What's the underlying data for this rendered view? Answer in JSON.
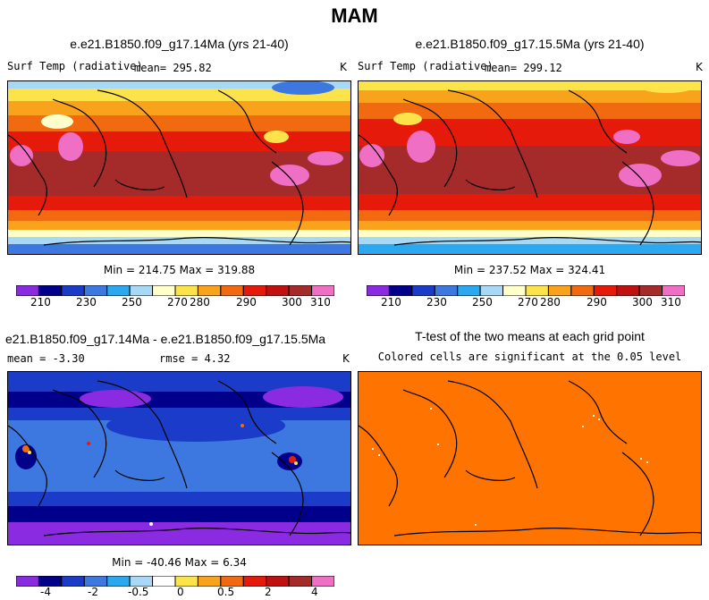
{
  "figure_title": "MAM",
  "panels": [
    {
      "title": "e.e21.B1850.f09_g17.14Ma (yrs 21-40)",
      "left_label": "Surf Temp (radiative)",
      "mean_text": "mean= 295.82",
      "units": "K",
      "minmax": "Min = 214.75 Max = 319.88",
      "colorbar_labels": [
        "210",
        "230",
        "250",
        "270",
        "280",
        "290",
        "300",
        "310"
      ]
    },
    {
      "title": "e.e21.B1850.f09_g17.15.5Ma (yrs 21-40)",
      "left_label": "Surf Temp (radiative)",
      "mean_text": "mean= 299.12",
      "units": "K",
      "minmax": "Min = 237.52 Max = 324.41",
      "colorbar_labels": [
        "210",
        "230",
        "250",
        "270",
        "280",
        "290",
        "300",
        "310"
      ]
    },
    {
      "title": "e21.B1850.f09_g17.14Ma - e.e21.B1850.f09_g17.15.5Ma",
      "mean_text": "mean =  -3.30",
      "rmse_text": "rmse =   4.32",
      "units": "K",
      "minmax": "Min = -40.46 Max =   6.34",
      "colorbar_labels": [
        "-4",
        "-2",
        "-0.5",
        "0",
        "0.5",
        "2",
        "4"
      ]
    },
    {
      "title": "T-test of the two means at each grid point",
      "subtitle": "Colored cells are significant at the 0.05 level"
    }
  ],
  "colors": {
    "temp_scale": [
      "#8a2be2",
      "#00008b",
      "#1a3cc8",
      "#3d78e0",
      "#2aa9f0",
      "#a7d8f5",
      "#ffffcc",
      "#fde34a",
      "#f9a21b",
      "#f26a10",
      "#e61a0a",
      "#c01010",
      "#a52a2a",
      "#ee6fc4"
    ],
    "diff_scale": [
      "#8a2be2",
      "#00008b",
      "#1a3cc8",
      "#3d78e0",
      "#2aa9f0",
      "#a7d8f5",
      "#ffffff",
      "#fde34a",
      "#f9a21b",
      "#f26a10",
      "#e61a0a",
      "#c01010",
      "#a52a2a",
      "#ee6fc4"
    ],
    "ttest_fill": "#ff7300"
  }
}
